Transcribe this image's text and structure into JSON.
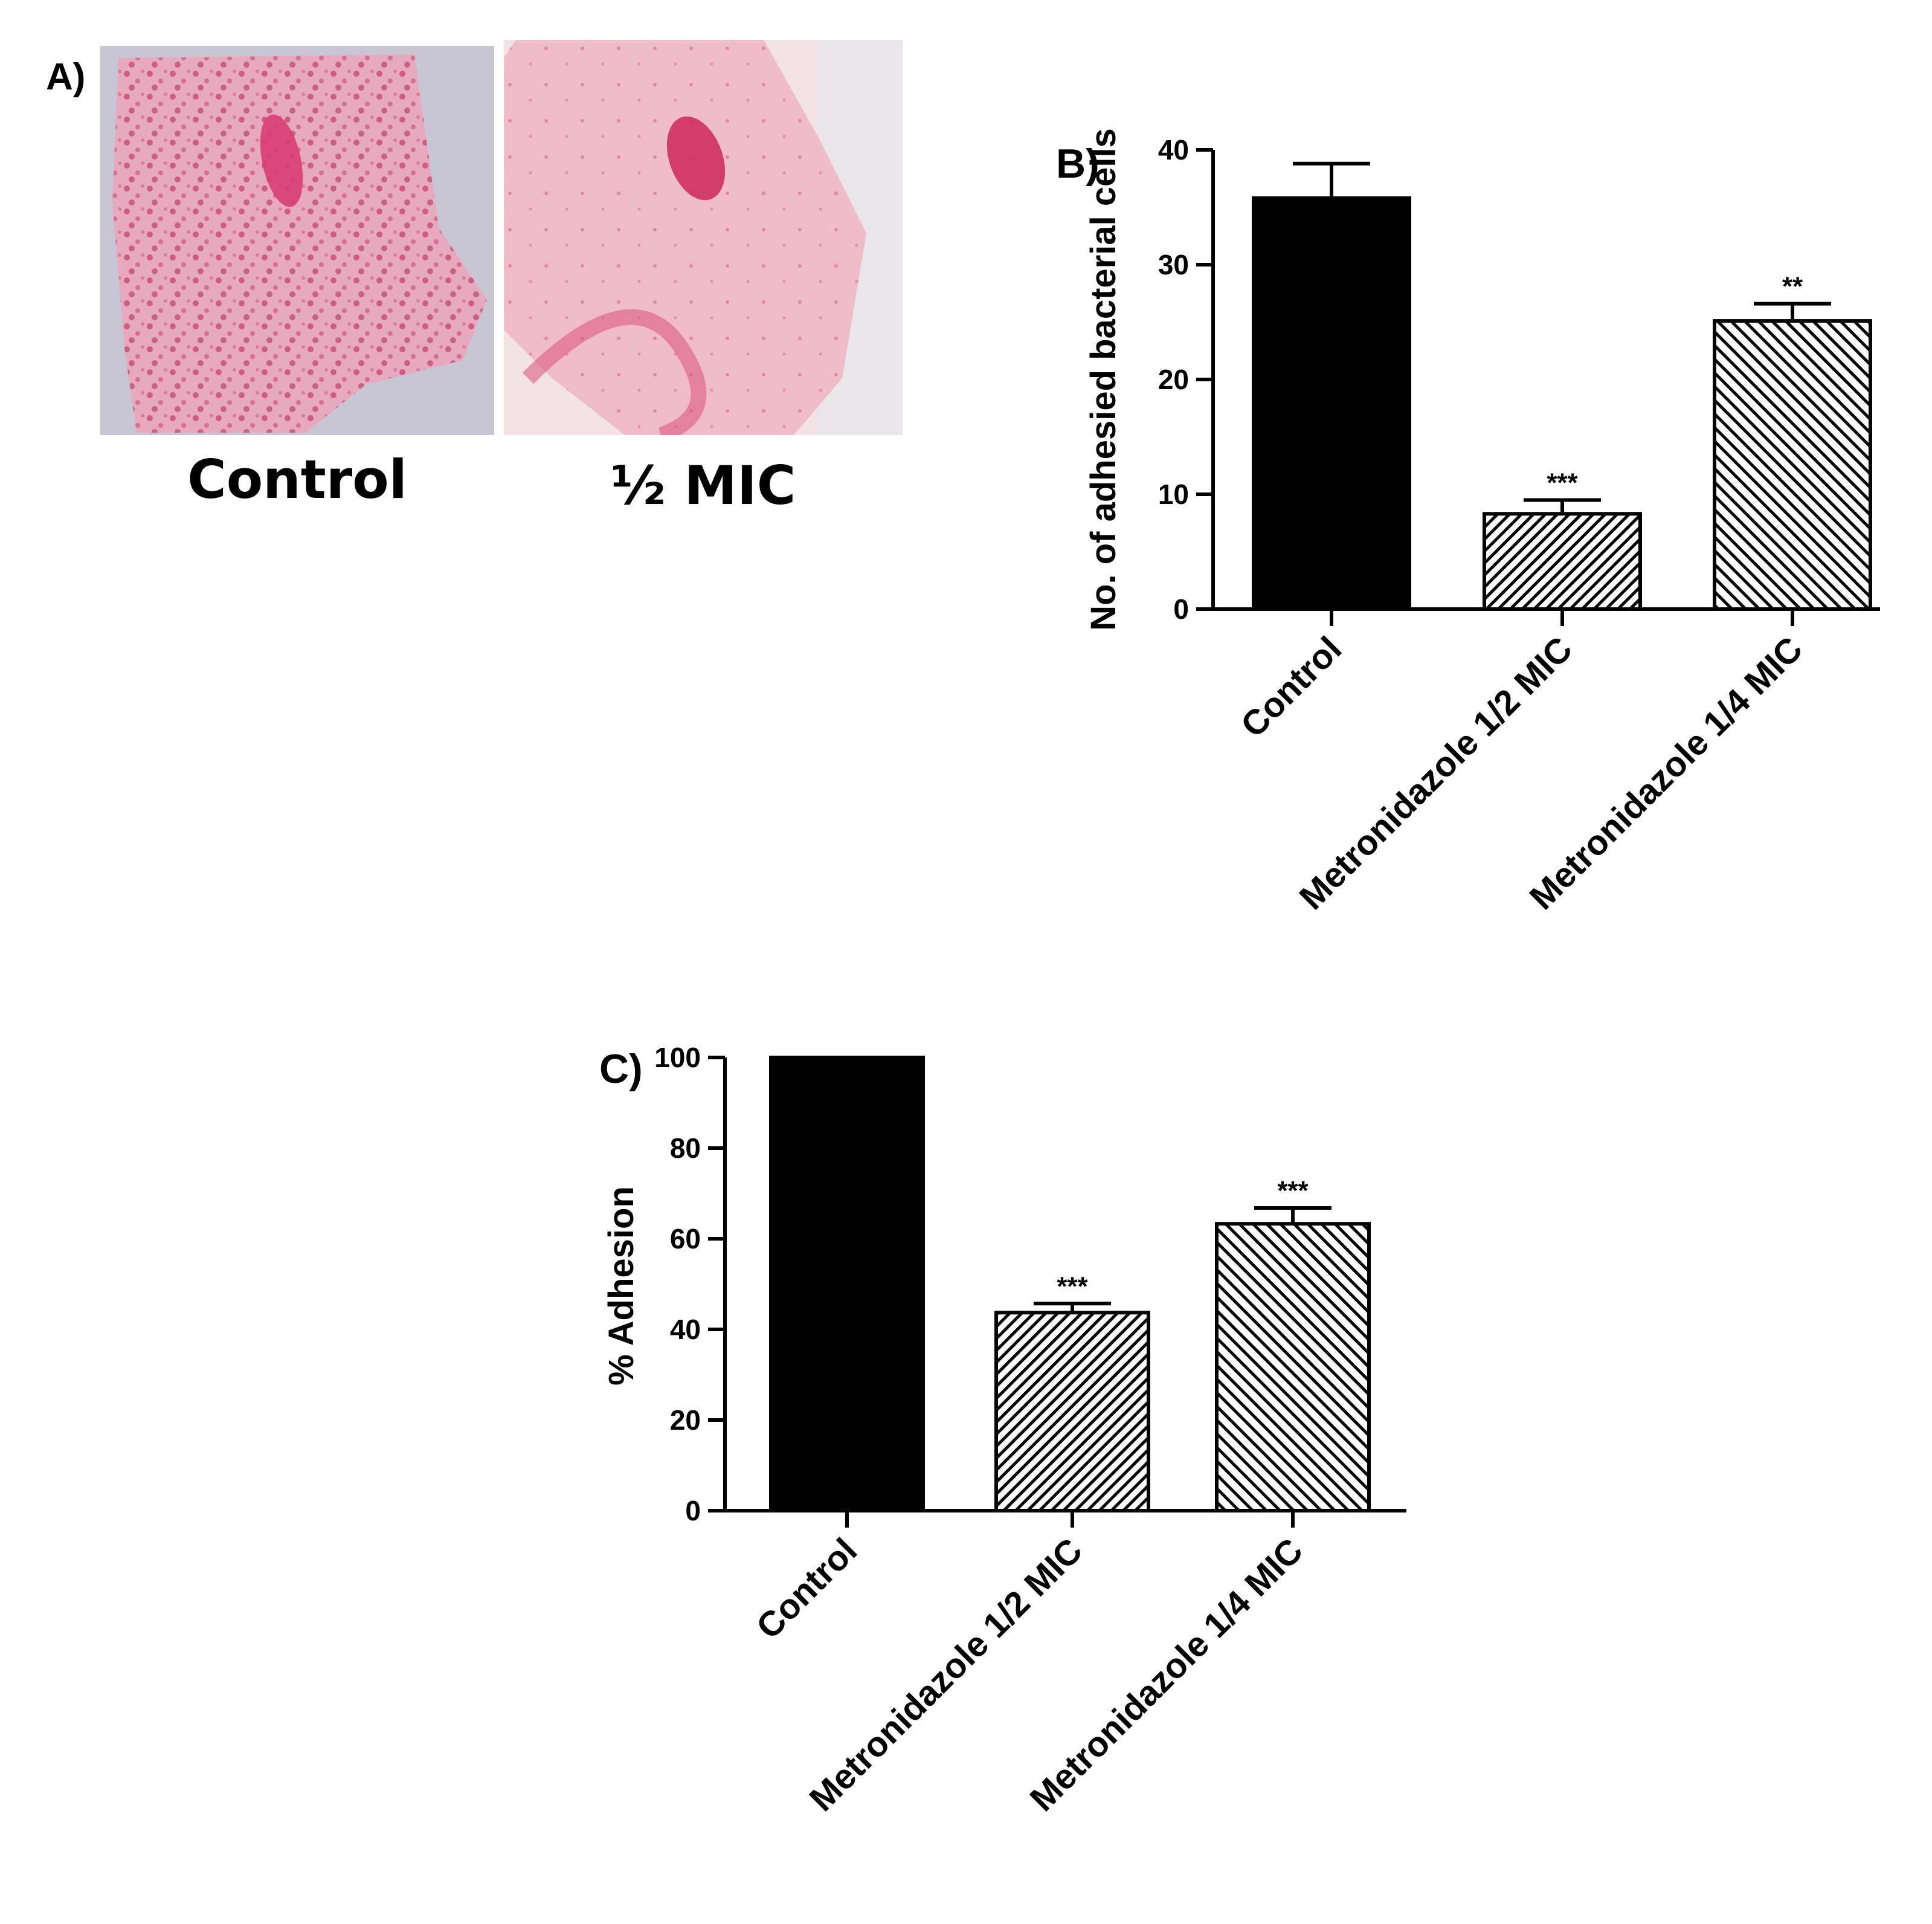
{
  "panels": {
    "a": {
      "label": "A)",
      "images": [
        {
          "caption": "Control",
          "tint": "#e7a9bd",
          "nucleus": "#d93e74"
        },
        {
          "caption": "½ MIC",
          "tint": "#f1bcc9",
          "nucleus": "#cf2f63"
        }
      ]
    },
    "b": {
      "label": "B)"
    },
    "c": {
      "label": "C)"
    }
  },
  "colors": {
    "bar_solid": "#000000",
    "hatch": "#000000",
    "axis": "#000000"
  },
  "chart_data": [
    {
      "id": "B",
      "type": "bar",
      "categories": [
        "Control",
        "Metronidazole 1/2 MIC",
        "Metronidazole 1/4 MIC"
      ],
      "values": [
        35.8,
        8.3,
        25.1
      ],
      "errors": [
        3.0,
        1.2,
        1.5
      ],
      "annotations": [
        "",
        "***",
        "**"
      ],
      "fills": [
        "solid",
        "hatch-dense",
        "hatch-sparse"
      ],
      "ylabel": "No. of adhesied bacterial cells",
      "xlabel": "",
      "ylim": [
        0,
        40
      ],
      "yticks": [
        0,
        10,
        20,
        30,
        40
      ],
      "grid": false
    },
    {
      "id": "C",
      "type": "bar",
      "categories": [
        "Control",
        "Metronidazole 1/2 MIC",
        "Metronidazole 1/4 MIC"
      ],
      "values": [
        100,
        43.7,
        63.3
      ],
      "errors": [
        0,
        2.0,
        3.5
      ],
      "annotations": [
        "",
        "***",
        "***"
      ],
      "fills": [
        "solid",
        "hatch-dense",
        "hatch-sparse"
      ],
      "ylabel": "% Adhesion",
      "xlabel": "",
      "ylim": [
        0,
        100
      ],
      "yticks": [
        0,
        20,
        40,
        60,
        80,
        100
      ],
      "grid": false
    }
  ]
}
